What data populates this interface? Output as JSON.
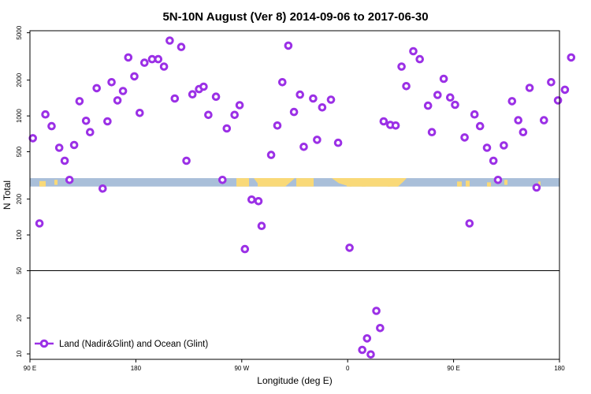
{
  "chart_data": {
    "type": "scatter",
    "title": "5N-10N August (Ver 8)   2014-09-06 to 2017-06-30",
    "xlabel": "Longitude (deg E)",
    "ylabel": "N Total",
    "x_ticks": [
      {
        "value": 90,
        "label": "90 E"
      },
      {
        "value": 180,
        "label": "180"
      },
      {
        "value": 270,
        "label": "90 W"
      },
      {
        "value": 360,
        "label": "0"
      },
      {
        "value": 450,
        "label": "90 E"
      },
      {
        "value": 540,
        "label": "180"
      }
    ],
    "xlim": [
      90,
      540
    ],
    "y_scale": "log",
    "ylim": [
      9,
      5200
    ],
    "y_ticks": [
      {
        "value": 10,
        "label": "10"
      },
      {
        "value": 20,
        "label": "20"
      },
      {
        "value": 50,
        "label": "50"
      },
      {
        "value": 100,
        "label": "100"
      },
      {
        "value": 200,
        "label": "200"
      },
      {
        "value": 500,
        "label": "500"
      },
      {
        "value": 1000,
        "label": "1000"
      },
      {
        "value": 2000,
        "label": "2000"
      },
      {
        "value": 5000,
        "label": "5000"
      }
    ],
    "reference_line": {
      "y": 50
    },
    "land_band": {
      "y_range": [
        255,
        300
      ],
      "ocean_color": "#a9bfd9",
      "land_color": "#f9d978"
    },
    "legend": {
      "position": "bottom-left",
      "entry": "Land (Nadir&Glint) and Ocean (Glint)"
    },
    "series": [
      {
        "name": "Land (Nadir&Glint) and Ocean (Glint)",
        "color": "#9b30e6",
        "points": [
          [
            92.5,
            650
          ],
          [
            98.1,
            125
          ],
          [
            103.1,
            1030
          ],
          [
            108.4,
            820
          ],
          [
            114.9,
            540
          ],
          [
            119.5,
            420
          ],
          [
            123.6,
            290
          ],
          [
            127.6,
            570
          ],
          [
            132.1,
            1330
          ],
          [
            137.7,
            910
          ],
          [
            141.1,
            730
          ],
          [
            146.7,
            1710
          ],
          [
            151.8,
            245
          ],
          [
            155.9,
            900
          ],
          [
            159.4,
            1920
          ],
          [
            164.4,
            1350
          ],
          [
            169.1,
            1620
          ],
          [
            173.6,
            3100
          ],
          [
            178.7,
            2150
          ],
          [
            183.3,
            1060
          ],
          [
            187.3,
            2800
          ],
          [
            193.8,
            3000
          ],
          [
            199.0,
            3000
          ],
          [
            203.9,
            2600
          ],
          [
            208.8,
            4300
          ],
          [
            213.1,
            1400
          ],
          [
            218.6,
            3800
          ],
          [
            223.0,
            420
          ],
          [
            228.1,
            1520
          ],
          [
            233.7,
            1680
          ],
          [
            237.6,
            1760
          ],
          [
            241.6,
            1020
          ],
          [
            248.1,
            1450
          ],
          [
            253.6,
            290
          ],
          [
            257.3,
            785
          ],
          [
            263.9,
            1020
          ],
          [
            268.2,
            1230
          ],
          [
            272.7,
            76
          ],
          [
            278.4,
            198
          ],
          [
            284.2,
            192
          ],
          [
            286.9,
            119
          ],
          [
            295.0,
            470
          ],
          [
            300.3,
            830
          ],
          [
            304.5,
            1920
          ],
          [
            309.6,
            3900
          ],
          [
            314.4,
            1080
          ],
          [
            319.5,
            1510
          ],
          [
            322.7,
            550
          ],
          [
            330.7,
            1400
          ],
          [
            334.0,
            630
          ],
          [
            338.4,
            1180
          ],
          [
            345.8,
            1370
          ],
          [
            351.9,
            595
          ],
          [
            361.6,
            78
          ],
          [
            372.4,
            10.8
          ],
          [
            376.5,
            13.5
          ],
          [
            379.6,
            9.9
          ],
          [
            384.4,
            23
          ],
          [
            387.6,
            16.5
          ],
          [
            390.6,
            900
          ],
          [
            396.2,
            840
          ],
          [
            400.8,
            830
          ],
          [
            405.8,
            2600
          ],
          [
            409.8,
            1780
          ],
          [
            415.8,
            3500
          ],
          [
            421.3,
            3000
          ],
          [
            428.3,
            1220
          ],
          [
            431.6,
            730
          ],
          [
            436.4,
            1500
          ],
          [
            441.6,
            2050
          ],
          [
            447.1,
            1430
          ],
          [
            451.3,
            1240
          ],
          [
            459.4,
            660
          ],
          [
            463.5,
            125
          ],
          [
            467.8,
            1030
          ],
          [
            472.5,
            820
          ],
          [
            478.4,
            540
          ],
          [
            483.9,
            420
          ],
          [
            487.8,
            290
          ],
          [
            492.7,
            565
          ],
          [
            499.7,
            1330
          ],
          [
            505.0,
            920
          ],
          [
            509.1,
            730
          ],
          [
            514.6,
            1720
          ],
          [
            520.5,
            250
          ],
          [
            526.8,
            920
          ],
          [
            532.9,
            1920
          ],
          [
            538.7,
            1350
          ],
          [
            544.6,
            1660
          ],
          [
            549.9,
            3100
          ]
        ]
      }
    ]
  }
}
